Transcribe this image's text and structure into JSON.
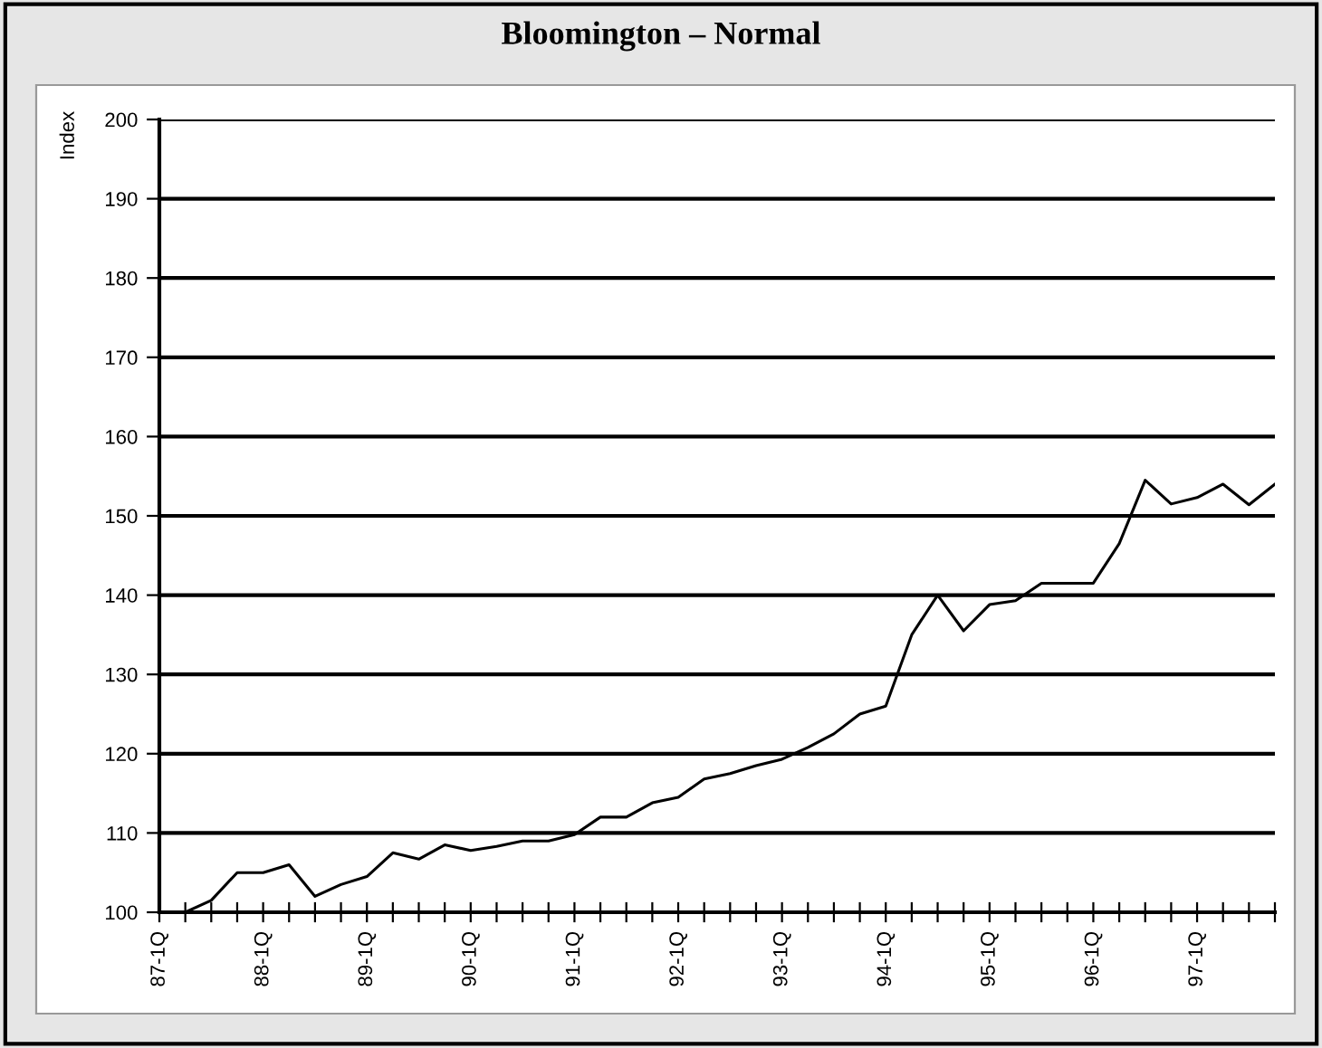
{
  "chart_data": {
    "type": "line",
    "title": "Bloomington – Normal",
    "ylabel": "Index",
    "categories": [
      "87-1Q",
      null,
      null,
      null,
      "88-1Q",
      null,
      null,
      null,
      "89-1Q",
      null,
      null,
      null,
      "90-1Q",
      null,
      null,
      null,
      "91-1Q",
      null,
      null,
      null,
      "92-1Q",
      null,
      null,
      null,
      "93-1Q",
      null,
      null,
      null,
      "94-1Q",
      null,
      null,
      null,
      "95-1Q",
      null,
      null,
      null,
      "96-1Q",
      null,
      null,
      null,
      "97-1Q",
      null,
      null,
      null
    ],
    "series": [
      {
        "color": "#000000",
        "values": [
          null,
          100,
          101.5,
          105,
          105,
          106,
          102,
          103.5,
          104.5,
          107.5,
          106.7,
          108.5,
          107.8,
          108.3,
          109,
          109,
          109.8,
          112,
          112,
          113.8,
          114.5,
          116.8,
          117.5,
          118.5,
          119.3,
          120.8,
          122.5,
          125,
          126,
          135,
          140,
          135.5,
          138.8,
          139.3,
          141.5,
          141.5,
          141.5,
          146.5,
          154.5,
          151.5,
          152.3,
          154,
          151.4,
          154
        ]
      }
    ],
    "ylim": [
      100,
      200
    ],
    "yticks": [
      100,
      110,
      120,
      130,
      140,
      150,
      160,
      170,
      180,
      190,
      200
    ],
    "grid": "y",
    "marker": "none",
    "line_style": "solid"
  }
}
